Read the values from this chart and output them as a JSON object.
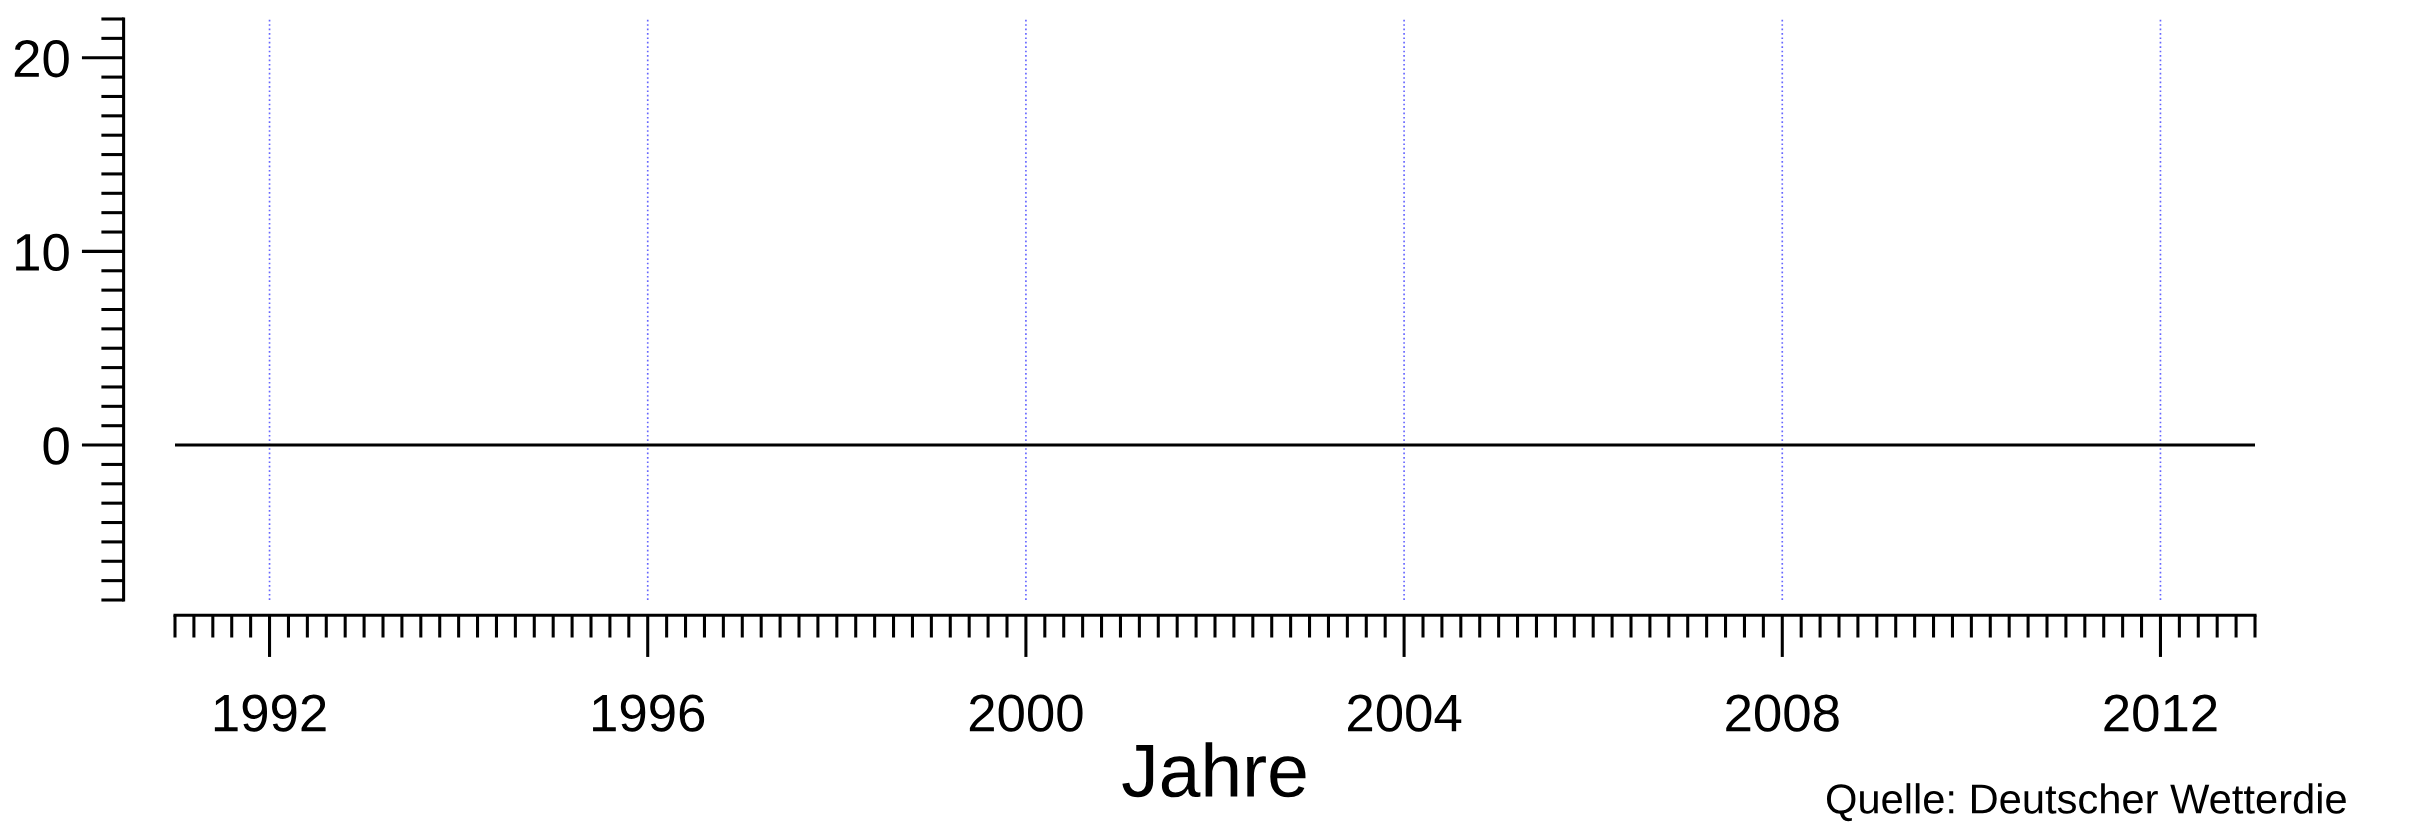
{
  "chart_data": {
    "type": "line",
    "xlabel": "Jahre",
    "x": [
      1991,
      2013
    ],
    "series": [
      {
        "color": "#000000",
        "values": [
          0,
          0
        ]
      }
    ],
    "xlim": [
      1991,
      2013
    ],
    "xticks": [
      1992,
      1996,
      2000,
      2004,
      2008,
      2012
    ],
    "ylim": [
      -8,
      22
    ],
    "yticks": [
      0,
      10,
      20
    ],
    "grid": "x",
    "marker": "none",
    "line_style": "solid",
    "legend": false,
    "annotations": [
      "Quelle: Deutscher Wetterdie"
    ]
  }
}
